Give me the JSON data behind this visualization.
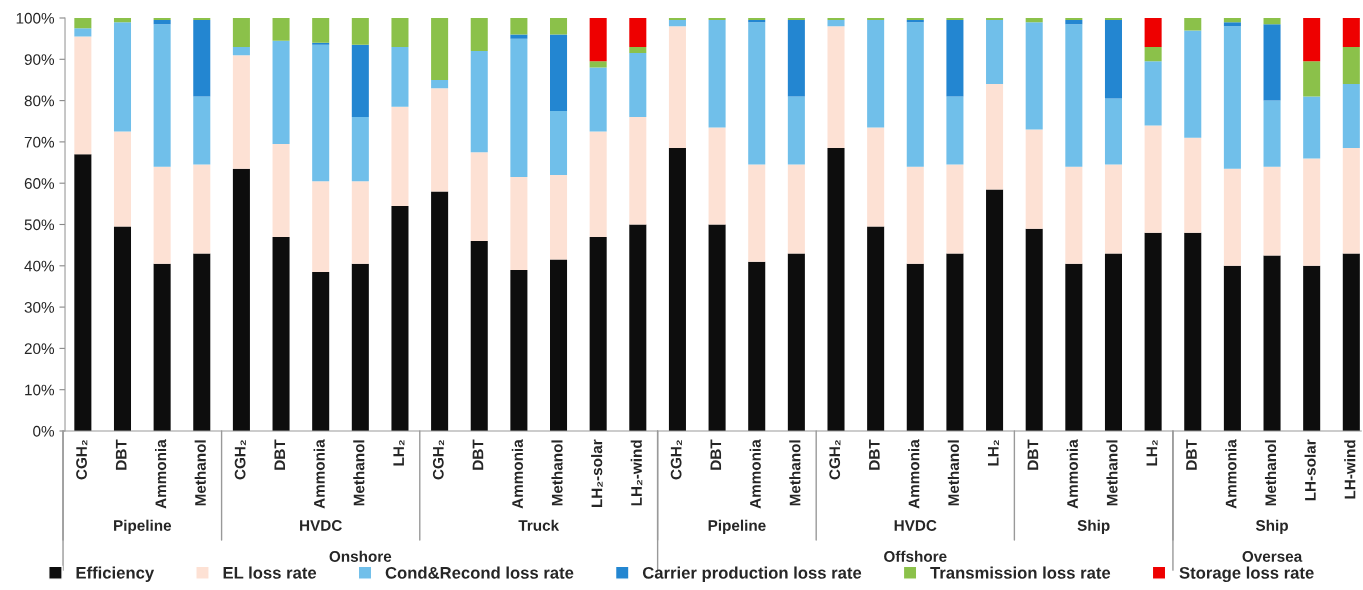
{
  "chart_data": {
    "type": "bar",
    "stacked": true,
    "legend": "bottom",
    "categories": [
      "CGH₂",
      "DBT",
      "Ammonia",
      "Methanol",
      "CGH₂",
      "DBT",
      "Ammonia",
      "Methanol",
      "LH₂",
      "CGH₂",
      "DBT",
      "Ammonia",
      "Methanol",
      "LH₂-solar",
      "LH₂-wind",
      "CGH₂",
      "DBT",
      "Ammonia",
      "Methanol",
      "CGH₂",
      "DBT",
      "Ammonia",
      "Methanol",
      "LH₂",
      "DBT",
      "Ammonia",
      "Methanol",
      "LH₂",
      "DBT",
      "Ammonia",
      "Methanol",
      "LH-solar",
      "LH-wind"
    ],
    "ylim": [
      0,
      100
    ],
    "yticks": [
      {
        "value": 0,
        "label": "0%"
      },
      {
        "value": 10,
        "label": "10%"
      },
      {
        "value": 20,
        "label": "20%"
      },
      {
        "value": 30,
        "label": "30%"
      },
      {
        "value": 40,
        "label": "40%"
      },
      {
        "value": 50,
        "label": "50%"
      },
      {
        "value": 60,
        "label": "60%"
      },
      {
        "value": 70,
        "label": "70%"
      },
      {
        "value": 80,
        "label": "80%"
      },
      {
        "value": 90,
        "label": "90%"
      },
      {
        "value": 100,
        "label": "100%"
      }
    ],
    "series": [
      {
        "name": "Efficiency",
        "color": "#0d0d0d",
        "values": [
          67,
          49.5,
          40.5,
          43,
          63.5,
          47,
          38.5,
          40.5,
          54.5,
          58,
          46,
          39,
          41.5,
          47,
          50,
          68.5,
          50,
          41,
          43,
          68.5,
          49.5,
          40.5,
          43,
          58.5,
          49,
          40.5,
          43,
          48,
          48,
          40,
          42.5,
          40,
          43
        ]
      },
      {
        "name": "EL loss rate",
        "color": "#fde1d4",
        "values": [
          28.5,
          23,
          23.5,
          21.5,
          27.5,
          22.5,
          22,
          20,
          24,
          25,
          21.5,
          22.5,
          20.5,
          25.5,
          26,
          29.5,
          23.5,
          23.5,
          21.5,
          29.5,
          24,
          23.5,
          21.5,
          25.5,
          24,
          23.5,
          21.5,
          26,
          23,
          23.5,
          21.5,
          26,
          25.5
        ]
      },
      {
        "name": "Cond&Recond loss rate",
        "color": "#70bfea",
        "values": [
          2,
          26.5,
          34.5,
          16.5,
          2,
          25,
          33,
          15.5,
          14.5,
          2,
          24.5,
          33.5,
          15.5,
          15.5,
          15.5,
          1.5,
          26,
          34.5,
          16.5,
          1.5,
          26,
          35,
          16.5,
          15.5,
          26,
          34.5,
          16,
          15.5,
          26,
          34.5,
          16,
          15,
          15.5
        ]
      },
      {
        "name": "Carrier production loss rate",
        "color": "#2386d1",
        "values": [
          0,
          0,
          1,
          18.5,
          0,
          0,
          0.5,
          17.5,
          0,
          0,
          0,
          1,
          18.5,
          0,
          0,
          0,
          0,
          0.5,
          18.5,
          0,
          0,
          0.5,
          18.5,
          0,
          0,
          1,
          19,
          0,
          0,
          1,
          18.5,
          0,
          0
        ]
      },
      {
        "name": "Transmission loss rate",
        "color": "#8bc14a",
        "values": [
          2.5,
          1,
          0.5,
          0.5,
          7,
          5.5,
          6,
          6.5,
          7,
          15,
          8,
          4,
          4,
          1.5,
          1.5,
          0.5,
          0.5,
          0.5,
          0.5,
          0.5,
          0.5,
          0.5,
          0.5,
          0.5,
          1,
          0.5,
          0.5,
          3.5,
          3,
          1,
          1.5,
          8.5,
          9
        ]
      },
      {
        "name": "Storage loss rate",
        "color": "#ee0000",
        "values": [
          0,
          0,
          0,
          0,
          0,
          0,
          0,
          0,
          0,
          0,
          0,
          0,
          0,
          10.5,
          7,
          0,
          0,
          0,
          0,
          0,
          0,
          0,
          0,
          0,
          0,
          0,
          0,
          7,
          0,
          0,
          0,
          10.5,
          7
        ]
      }
    ],
    "annotations": [
      "Pipeline",
      "HVDC",
      "Truck",
      "Pipeline",
      "HVDC",
      "Ship",
      "Ship",
      "Onshore",
      "Offshore",
      "Oversea"
    ]
  }
}
